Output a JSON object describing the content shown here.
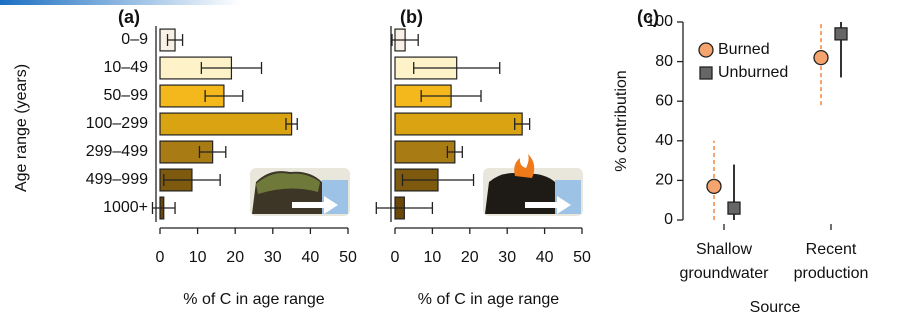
{
  "chart_data": [
    {
      "type": "hbar",
      "panel_label": "(a)",
      "categories": [
        "0–9",
        "10–49",
        "50–99",
        "100–299",
        "299–499",
        "499–999",
        "1000+"
      ],
      "values": [
        4,
        19,
        17,
        35,
        14,
        8.5,
        1
      ],
      "errors": [
        2,
        8,
        5,
        1.5,
        3.5,
        7.5,
        3
      ],
      "colors": [
        "#f9f1e6",
        "#fdf2c8",
        "#f4b81c",
        "#d9a312",
        "#a87b14",
        "#7d5a0e",
        "#6a470a"
      ],
      "xlabel": "% of C in age range",
      "ylabel": "Age range (years)",
      "xlim": [
        0,
        50
      ],
      "xticks": [
        0,
        10,
        20,
        30,
        40,
        50
      ]
    },
    {
      "type": "hbar",
      "panel_label": "(b)",
      "values": [
        2.7,
        16.5,
        15,
        34,
        16,
        11.5,
        2.5
      ],
      "errors": [
        3.5,
        11.5,
        8,
        2,
        2,
        9.5,
        7.5
      ],
      "colors": [
        "#f9f1e6",
        "#fdf2c8",
        "#f4b81c",
        "#d9a312",
        "#a87b14",
        "#7d5a0e",
        "#6a470a"
      ],
      "xlabel": "% of C in age range",
      "xlim": [
        0,
        50
      ],
      "xticks": [
        0,
        10,
        20,
        30,
        40,
        50
      ]
    },
    {
      "type": "dot",
      "panel_label": "(c)",
      "categories": [
        "Shallow groundwater",
        "Recent production"
      ],
      "series": [
        {
          "name": "Burned",
          "color": "#f4a46c",
          "marker": "circle",
          "line_style": "dashed",
          "values": [
            17,
            82
          ],
          "lower": [
            0,
            58
          ],
          "upper": [
            40,
            100
          ]
        },
        {
          "name": "Unburned",
          "color": "#666666",
          "marker": "square",
          "line_style": "solid",
          "values": [
            6,
            94
          ],
          "lower": [
            0,
            72
          ],
          "upper": [
            28,
            100
          ]
        }
      ],
      "xlabel": "Source",
      "ylabel": "% contribution",
      "ylim": [
        0,
        100
      ],
      "yticks": [
        0,
        20,
        40,
        60,
        80,
        100
      ],
      "legend": "upper left"
    }
  ]
}
